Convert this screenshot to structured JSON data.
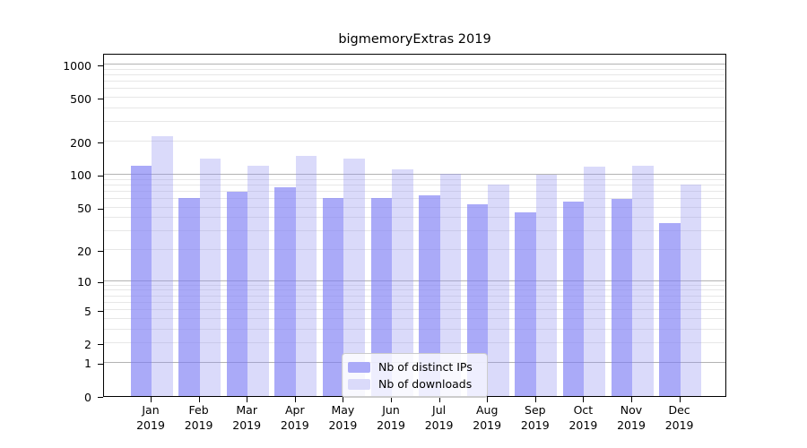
{
  "chart_data": {
    "type": "bar",
    "title": "bigmemoryExtras 2019",
    "categories": [
      "Jan 2019",
      "Feb 2019",
      "Mar 2019",
      "Apr 2019",
      "May 2019",
      "Jun 2019",
      "Jul 2019",
      "Aug 2019",
      "Sep 2019",
      "Oct 2019",
      "Nov 2019",
      "Dec 2019"
    ],
    "series": [
      {
        "name": "Nb of distinct IPs",
        "color": "#aaaaf8",
        "css_fill": "rgba(124,124,244,0.65)",
        "values": [
          120,
          61,
          70,
          77,
          61,
          61,
          65,
          53,
          45,
          57,
          60,
          36
        ]
      },
      {
        "name": "Nb of downloads",
        "color": "#dadafa",
        "css_fill": "rgba(149,149,240,0.35)",
        "values": [
          225,
          140,
          120,
          148,
          140,
          112,
          101,
          81,
          100,
          118,
          120,
          81
        ]
      }
    ],
    "y_ticks": [
      0,
      1,
      2,
      5,
      10,
      20,
      50,
      100,
      200,
      500,
      1000
    ],
    "y_scale": "log10(1+y)",
    "ylim": [
      0,
      1270
    ],
    "xlabel": "",
    "ylabel": "",
    "grid": "horizontal; major lines at 1,10,100,1000; minor lines at 2-9 per decade",
    "legend_position": "inside lower-center",
    "colors": {
      "axis": "#000000",
      "text": "#000000",
      "major_grid": "#b3b3b3",
      "minor_grid": "#e7e7e7",
      "background": "#ffffff"
    }
  }
}
